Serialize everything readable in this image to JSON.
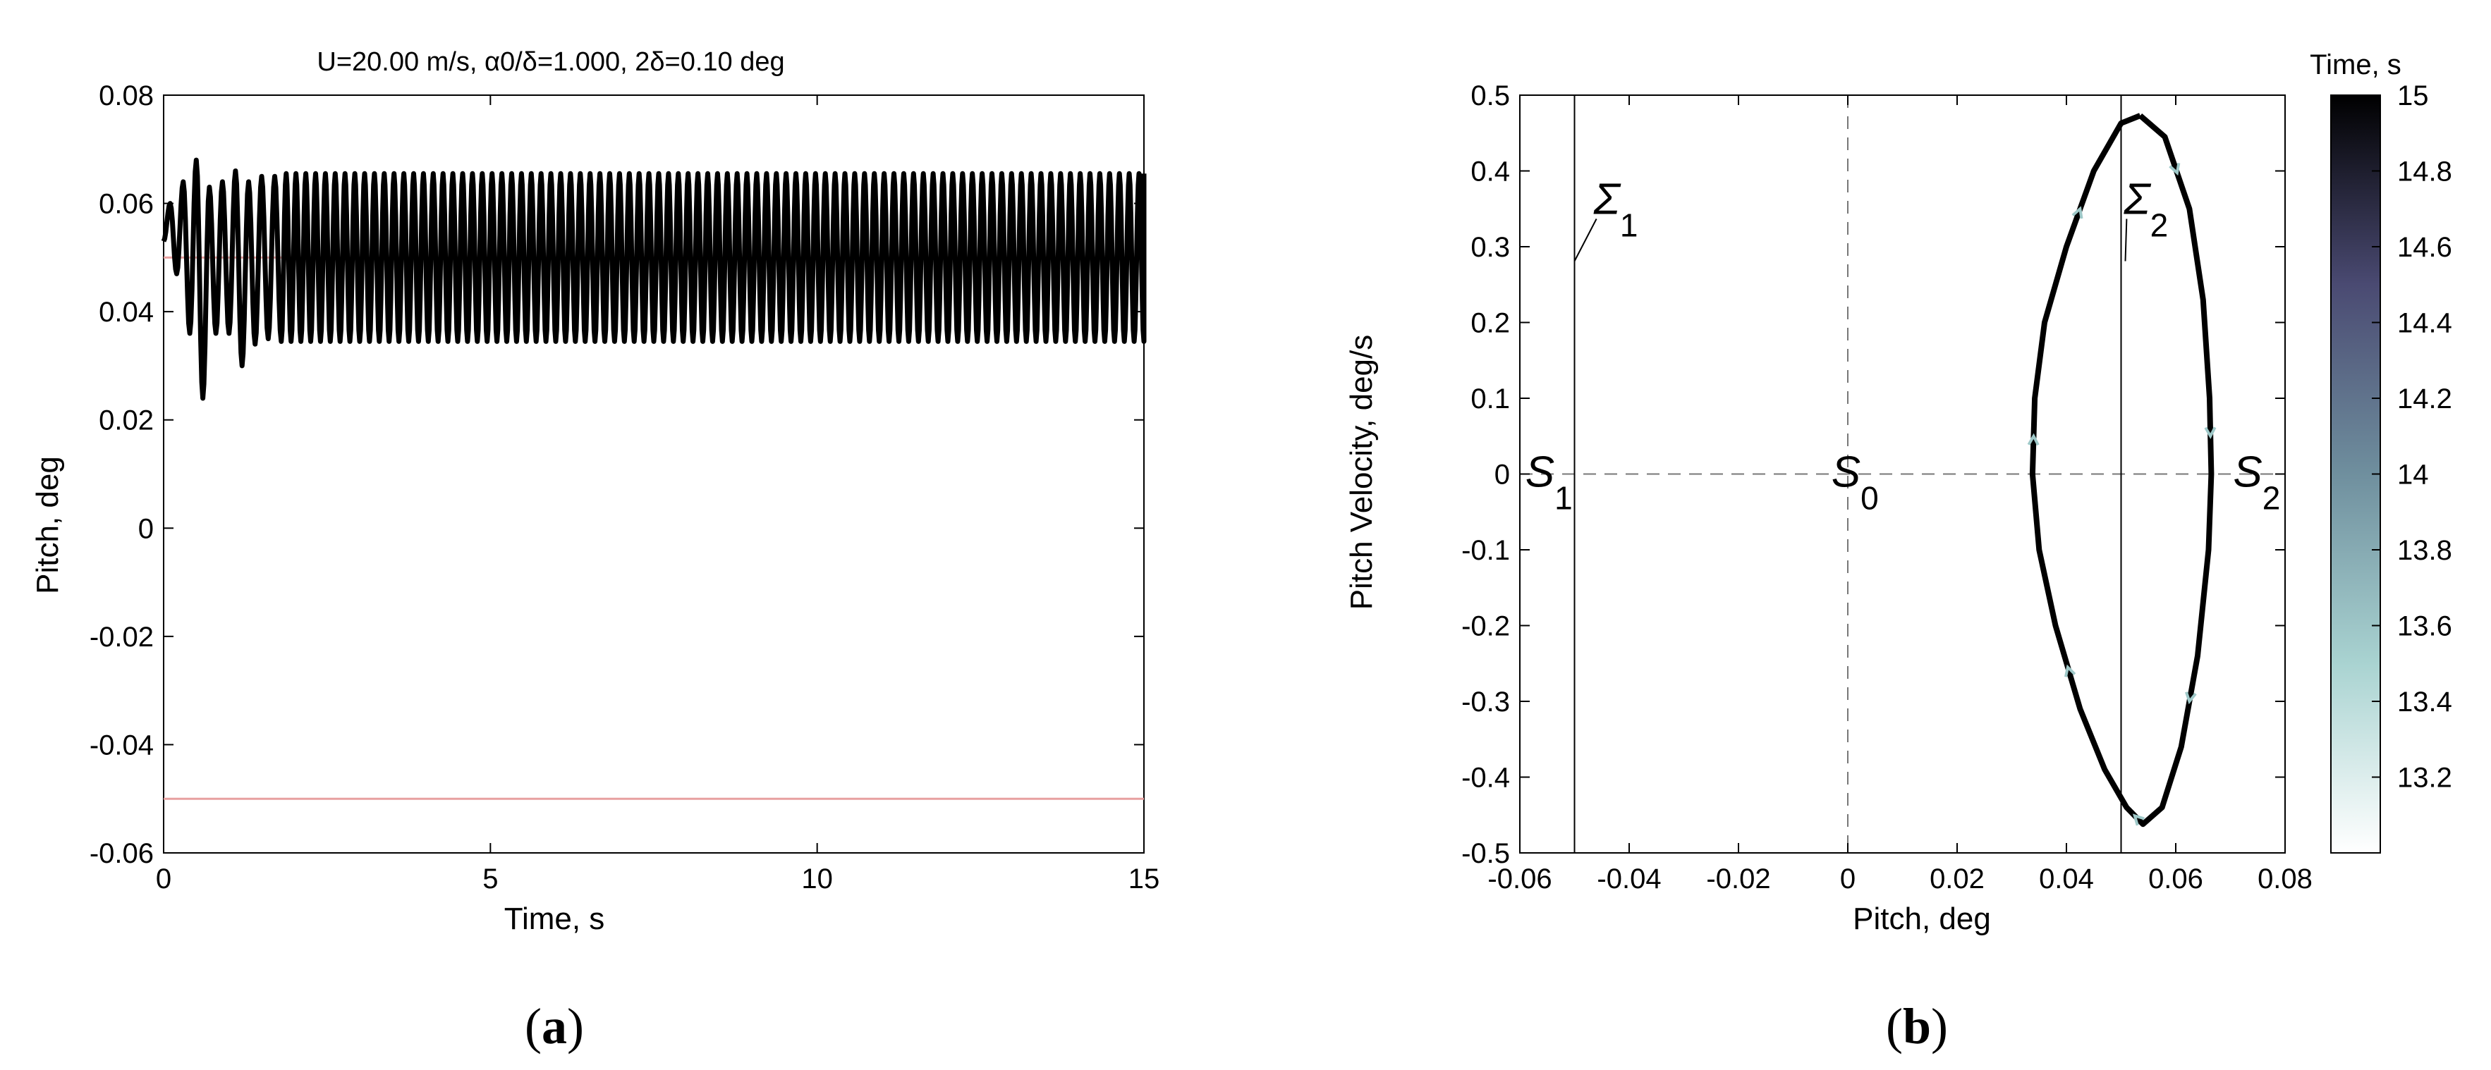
{
  "panels": [
    {
      "letter": "a",
      "caption": "(a)"
    },
    {
      "letter": "b",
      "caption": "(b)"
    }
  ],
  "chart_data": [
    {
      "id": "a",
      "type": "line",
      "title": "U=20.00 m/s, α0/δ=1.000, 2δ=0.10 deg",
      "xlabel": "Time, s",
      "ylabel": "Pitch, deg",
      "xlim": [
        0,
        15
      ],
      "ylim": [
        -0.06,
        0.08
      ],
      "xticks": [
        0,
        5,
        10,
        15
      ],
      "xtick_labels": [
        "0",
        "5",
        "10",
        "15"
      ],
      "yticks": [
        -0.06,
        -0.04,
        -0.02,
        0,
        0.02,
        0.04,
        0.06,
        0.08
      ],
      "ytick_labels": [
        "-0.06",
        "-0.04",
        "-0.02",
        "0",
        "0.02",
        "0.04",
        "0.06",
        "0.08"
      ],
      "grid": false,
      "series": [
        {
          "color": "#000000",
          "description_values": {
            "oscillation_period_s": 0.15,
            "steady_max": 0.0655,
            "steady_min": 0.0345,
            "transient_points": [
              [
                0,
                0.053
              ],
              [
                0.1,
                0.06
              ],
              [
                0.2,
                0.047
              ],
              [
                0.3,
                0.064
              ],
              [
                0.4,
                0.036
              ],
              [
                0.5,
                0.068
              ],
              [
                0.6,
                0.024
              ],
              [
                0.7,
                0.063
              ],
              [
                0.8,
                0.036
              ],
              [
                0.9,
                0.064
              ],
              [
                1.0,
                0.036
              ],
              [
                1.1,
                0.066
              ],
              [
                1.2,
                0.03
              ],
              [
                1.3,
                0.064
              ],
              [
                1.4,
                0.034
              ],
              [
                1.5,
                0.065
              ],
              [
                1.6,
                0.035
              ],
              [
                1.7,
                0.065
              ],
              [
                1.8,
                0.0345
              ]
            ]
          }
        },
        {
          "color": "#e8a0a0",
          "y": 0.05
        },
        {
          "color": "#e8a0a0",
          "y": -0.05
        }
      ]
    },
    {
      "id": "b",
      "type": "line",
      "xlabel": "Pitch, deg",
      "ylabel": "Pitch Velocity, deg/s",
      "xlim": [
        -0.06,
        0.08
      ],
      "ylim": [
        -0.5,
        0.5
      ],
      "xticks": [
        -0.06,
        -0.04,
        -0.02,
        0,
        0.02,
        0.04,
        0.06,
        0.08
      ],
      "xtick_labels": [
        "-0.06",
        "-0.04",
        "-0.02",
        "0",
        "0.02",
        "0.04",
        "0.06",
        "0.08"
      ],
      "yticks": [
        -0.5,
        -0.4,
        -0.3,
        -0.2,
        -0.1,
        0,
        0.1,
        0.2,
        0.3,
        0.4,
        0.5
      ],
      "ytick_labels": [
        "-0.5",
        "-0.4",
        "-0.3",
        "-0.2",
        "-0.1",
        "0",
        "0.1",
        "0.2",
        "0.3",
        "0.4",
        "0.5"
      ],
      "grid": false,
      "trajectory": [
        [
          0.0535,
          0.473
        ],
        [
          0.058,
          0.445
        ],
        [
          0.0625,
          0.35
        ],
        [
          0.065,
          0.23
        ],
        [
          0.0662,
          0.1
        ],
        [
          0.0665,
          0.0
        ],
        [
          0.066,
          -0.1
        ],
        [
          0.064,
          -0.24
        ],
        [
          0.061,
          -0.36
        ],
        [
          0.0575,
          -0.44
        ],
        [
          0.054,
          -0.462
        ],
        [
          0.051,
          -0.44
        ],
        [
          0.047,
          -0.39
        ],
        [
          0.0425,
          -0.31
        ],
        [
          0.038,
          -0.2
        ],
        [
          0.035,
          -0.1
        ],
        [
          0.0338,
          0.0
        ],
        [
          0.0342,
          0.1
        ],
        [
          0.036,
          0.2
        ],
        [
          0.04,
          0.3
        ],
        [
          0.045,
          0.4
        ],
        [
          0.05,
          0.463
        ],
        [
          0.0535,
          0.473
        ]
      ],
      "trajectory_color": "#000000",
      "lines": {
        "sigma1_x": -0.05,
        "sigma2_x": 0.05,
        "zero_dashed_x": 0,
        "zero_dashed_y": 0
      },
      "labels": [
        {
          "text": "S",
          "sub": "1",
          "x": -0.059,
          "y": 0.0
        },
        {
          "text": "S",
          "sub": "0",
          "x": -0.003,
          "y": 0.0
        },
        {
          "text": "S",
          "sub": "2",
          "x": 0.0705,
          "y": 0.0
        },
        {
          "text": "Σ",
          "sub": "1",
          "x": -0.0465,
          "y": 0.36
        },
        {
          "text": "Σ",
          "sub": "2",
          "x": 0.0505,
          "y": 0.36
        }
      ],
      "colorbar": {
        "title": "Time, s",
        "range": [
          13.0,
          15
        ],
        "ticks": [
          13.2,
          13.4,
          13.6,
          13.8,
          14,
          14.2,
          14.4,
          14.6,
          14.8,
          15
        ],
        "tick_labels": [
          "13.2",
          "13.4",
          "13.6",
          "13.8",
          "14",
          "14.2",
          "14.4",
          "14.6",
          "14.8",
          "15"
        ],
        "colors": [
          "#ffffff",
          "#a9d3d1",
          "#6f8f9e",
          "#4a4a72",
          "#000000"
        ]
      }
    }
  ]
}
